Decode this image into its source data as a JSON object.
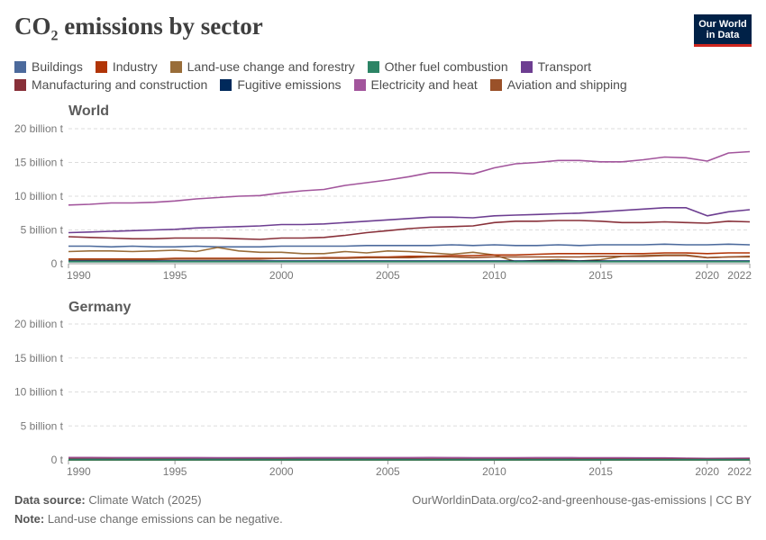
{
  "header": {
    "title_main": "CO",
    "title_sub": "2",
    "title_rest": " emissions by sector",
    "logo_line1": "Our World",
    "logo_line2": "in Data"
  },
  "legend": [
    {
      "name": "Buildings",
      "color": "#4c6a9c"
    },
    {
      "name": "Industry",
      "color": "#b13507"
    },
    {
      "name": "Land-use change and forestry",
      "color": "#996d39"
    },
    {
      "name": "Other fuel combustion",
      "color": "#2c8465"
    },
    {
      "name": "Transport",
      "color": "#6d3e91"
    },
    {
      "name": "Manufacturing and construction",
      "color": "#883039"
    },
    {
      "name": "Fugitive emissions",
      "color": "#00295b"
    },
    {
      "name": "Electricity and heat",
      "color": "#a2559c"
    },
    {
      "name": "Aviation and shipping",
      "color": "#9a5129"
    }
  ],
  "footer": {
    "source_label": "Data source:",
    "source_value": " Climate Watch (2025)",
    "url": "OurWorldinData.org/co2-and-greenhouse-gas-emissions | CC BY",
    "note_label": "Note:",
    "note_value": " Land-use change emissions can be negative."
  },
  "chart_data": [
    {
      "type": "line",
      "title": "World",
      "ylim": [
        0,
        20
      ],
      "yticks": [
        "0 t",
        "5 billion t",
        "10 billion t",
        "15 billion t",
        "20 billion t"
      ],
      "xticks": [
        "1990",
        "1995",
        "2000",
        "2005",
        "2010",
        "2015",
        "2020",
        "2022"
      ],
      "x": [
        1990,
        1991,
        1992,
        1993,
        1994,
        1995,
        1996,
        1997,
        1998,
        1999,
        2000,
        2001,
        2002,
        2003,
        2004,
        2005,
        2006,
        2007,
        2008,
        2009,
        2010,
        2011,
        2012,
        2013,
        2014,
        2015,
        2016,
        2017,
        2018,
        2019,
        2020,
        2021,
        2022
      ],
      "series": [
        {
          "name": "Electricity and heat",
          "color": "#a2559c",
          "values": [
            8.7,
            8.8,
            9.0,
            9.0,
            9.1,
            9.3,
            9.6,
            9.8,
            10.0,
            10.1,
            10.5,
            10.8,
            11.0,
            11.6,
            12.0,
            12.4,
            12.9,
            13.5,
            13.5,
            13.3,
            14.2,
            14.8,
            15.0,
            15.3,
            15.3,
            15.1,
            15.1,
            15.4,
            15.8,
            15.7,
            15.2,
            16.4,
            16.6
          ]
        },
        {
          "name": "Transport",
          "color": "#6d3e91",
          "values": [
            4.6,
            4.7,
            4.8,
            4.9,
            5.0,
            5.1,
            5.3,
            5.4,
            5.5,
            5.6,
            5.8,
            5.8,
            5.9,
            6.1,
            6.3,
            6.5,
            6.7,
            6.9,
            6.9,
            6.8,
            7.1,
            7.2,
            7.3,
            7.4,
            7.5,
            7.7,
            7.9,
            8.1,
            8.3,
            8.3,
            7.1,
            7.7,
            8.0
          ]
        },
        {
          "name": "Manufacturing and construction",
          "color": "#883039",
          "values": [
            4.0,
            3.9,
            3.8,
            3.7,
            3.7,
            3.8,
            3.8,
            3.8,
            3.7,
            3.6,
            3.8,
            3.8,
            3.9,
            4.2,
            4.6,
            4.9,
            5.2,
            5.4,
            5.5,
            5.6,
            6.1,
            6.3,
            6.3,
            6.4,
            6.4,
            6.3,
            6.1,
            6.1,
            6.2,
            6.1,
            6.0,
            6.3,
            6.2
          ]
        },
        {
          "name": "Buildings",
          "color": "#4c6a9c",
          "values": [
            2.6,
            2.6,
            2.5,
            2.6,
            2.5,
            2.5,
            2.6,
            2.5,
            2.5,
            2.5,
            2.6,
            2.6,
            2.6,
            2.6,
            2.7,
            2.7,
            2.7,
            2.7,
            2.8,
            2.7,
            2.8,
            2.7,
            2.7,
            2.8,
            2.7,
            2.8,
            2.8,
            2.8,
            2.9,
            2.8,
            2.8,
            2.9,
            2.8
          ]
        },
        {
          "name": "Land-use change and forestry",
          "color": "#996d39",
          "values": [
            1.8,
            1.9,
            1.9,
            1.8,
            1.9,
            2.0,
            1.8,
            2.4,
            1.9,
            1.7,
            1.7,
            1.5,
            1.5,
            1.8,
            1.6,
            1.9,
            1.8,
            1.6,
            1.4,
            1.7,
            1.3,
            0.3,
            0.5,
            0.6,
            0.4,
            0.6,
            1.1,
            1.2,
            1.3,
            1.3,
            0.9,
            1.0,
            1.0
          ]
        },
        {
          "name": "Industry",
          "color": "#b13507",
          "values": [
            0.7,
            0.7,
            0.7,
            0.7,
            0.7,
            0.8,
            0.8,
            0.8,
            0.8,
            0.8,
            0.8,
            0.8,
            0.9,
            0.9,
            1.0,
            1.0,
            1.1,
            1.1,
            1.2,
            1.2,
            1.3,
            1.3,
            1.4,
            1.5,
            1.5,
            1.5,
            1.5,
            1.5,
            1.6,
            1.6,
            1.5,
            1.6,
            1.6
          ]
        },
        {
          "name": "Aviation and shipping",
          "color": "#9a5129",
          "values": [
            0.6,
            0.6,
            0.6,
            0.6,
            0.6,
            0.7,
            0.7,
            0.7,
            0.7,
            0.7,
            0.8,
            0.8,
            0.8,
            0.8,
            0.9,
            0.9,
            0.9,
            1.0,
            1.0,
            0.9,
            1.0,
            1.0,
            1.0,
            1.0,
            1.0,
            1.1,
            1.1,
            1.1,
            1.2,
            1.2,
            0.9,
            1.0,
            1.1
          ]
        },
        {
          "name": "Fugitive emissions",
          "color": "#00295b",
          "values": [
            0.4,
            0.4,
            0.4,
            0.4,
            0.4,
            0.4,
            0.4,
            0.4,
            0.4,
            0.4,
            0.4,
            0.4,
            0.4,
            0.4,
            0.4,
            0.4,
            0.4,
            0.4,
            0.4,
            0.4,
            0.4,
            0.4,
            0.4,
            0.4,
            0.4,
            0.4,
            0.4,
            0.4,
            0.4,
            0.4,
            0.4,
            0.4,
            0.4
          ]
        },
        {
          "name": "Other fuel combustion",
          "color": "#2c8465",
          "values": [
            0.3,
            0.3,
            0.3,
            0.3,
            0.3,
            0.3,
            0.3,
            0.3,
            0.3,
            0.3,
            0.3,
            0.3,
            0.3,
            0.3,
            0.3,
            0.3,
            0.3,
            0.3,
            0.3,
            0.3,
            0.3,
            0.3,
            0.3,
            0.3,
            0.3,
            0.3,
            0.3,
            0.3,
            0.3,
            0.3,
            0.3,
            0.3,
            0.3
          ]
        }
      ]
    },
    {
      "type": "line",
      "title": "Germany",
      "ylim": [
        0,
        20
      ],
      "yticks": [
        "0 t",
        "5 billion t",
        "10 billion t",
        "15 billion t",
        "20 billion t"
      ],
      "xticks": [
        "1990",
        "1995",
        "2000",
        "2005",
        "2010",
        "2015",
        "2020",
        "2022"
      ],
      "x": [
        1990,
        1991,
        1992,
        1993,
        1994,
        1995,
        1996,
        1997,
        1998,
        1999,
        2000,
        2001,
        2002,
        2003,
        2004,
        2005,
        2006,
        2007,
        2008,
        2009,
        2010,
        2011,
        2012,
        2013,
        2014,
        2015,
        2016,
        2017,
        2018,
        2019,
        2020,
        2021,
        2022
      ],
      "series": [
        {
          "name": "Electricity and heat",
          "color": "#a2559c",
          "values": [
            0.36,
            0.36,
            0.35,
            0.34,
            0.34,
            0.34,
            0.35,
            0.33,
            0.33,
            0.32,
            0.33,
            0.34,
            0.34,
            0.35,
            0.35,
            0.35,
            0.35,
            0.36,
            0.35,
            0.32,
            0.33,
            0.33,
            0.34,
            0.35,
            0.33,
            0.33,
            0.33,
            0.31,
            0.3,
            0.25,
            0.22,
            0.24,
            0.25
          ]
        },
        {
          "name": "Transport",
          "color": "#6d3e91",
          "values": [
            0.16,
            0.16,
            0.17,
            0.17,
            0.17,
            0.17,
            0.17,
            0.17,
            0.17,
            0.18,
            0.17,
            0.17,
            0.17,
            0.17,
            0.16,
            0.16,
            0.16,
            0.15,
            0.15,
            0.15,
            0.15,
            0.16,
            0.15,
            0.16,
            0.16,
            0.16,
            0.16,
            0.17,
            0.16,
            0.16,
            0.15,
            0.15,
            0.15
          ]
        },
        {
          "name": "Manufacturing and construction",
          "color": "#883039",
          "values": [
            0.2,
            0.18,
            0.17,
            0.16,
            0.16,
            0.16,
            0.15,
            0.15,
            0.15,
            0.14,
            0.14,
            0.13,
            0.13,
            0.13,
            0.13,
            0.13,
            0.13,
            0.13,
            0.13,
            0.11,
            0.12,
            0.12,
            0.12,
            0.12,
            0.12,
            0.12,
            0.12,
            0.12,
            0.12,
            0.12,
            0.11,
            0.11,
            0.11
          ]
        },
        {
          "name": "Buildings",
          "color": "#4c6a9c",
          "values": [
            0.13,
            0.14,
            0.13,
            0.14,
            0.13,
            0.13,
            0.15,
            0.14,
            0.13,
            0.12,
            0.11,
            0.12,
            0.12,
            0.12,
            0.11,
            0.11,
            0.11,
            0.09,
            0.1,
            0.1,
            0.1,
            0.09,
            0.09,
            0.1,
            0.08,
            0.09,
            0.09,
            0.09,
            0.08,
            0.09,
            0.09,
            0.09,
            0.08
          ]
        },
        {
          "name": "Industry",
          "color": "#b13507",
          "values": [
            0.06,
            0.06,
            0.06,
            0.06,
            0.06,
            0.06,
            0.06,
            0.06,
            0.06,
            0.06,
            0.06,
            0.06,
            0.06,
            0.06,
            0.06,
            0.06,
            0.06,
            0.06,
            0.06,
            0.05,
            0.05,
            0.05,
            0.05,
            0.05,
            0.05,
            0.05,
            0.05,
            0.05,
            0.05,
            0.05,
            0.05,
            0.05,
            0.05
          ]
        },
        {
          "name": "Aviation and shipping",
          "color": "#9a5129",
          "values": [
            0.03,
            0.03,
            0.03,
            0.03,
            0.03,
            0.03,
            0.03,
            0.03,
            0.03,
            0.03,
            0.03,
            0.03,
            0.03,
            0.03,
            0.03,
            0.03,
            0.03,
            0.03,
            0.03,
            0.03,
            0.03,
            0.03,
            0.03,
            0.03,
            0.03,
            0.03,
            0.03,
            0.03,
            0.03,
            0.03,
            0.02,
            0.02,
            0.02
          ]
        },
        {
          "name": "Fugitive emissions",
          "color": "#00295b",
          "values": [
            0.02,
            0.02,
            0.02,
            0.02,
            0.02,
            0.02,
            0.02,
            0.02,
            0.02,
            0.02,
            0.02,
            0.02,
            0.02,
            0.02,
            0.02,
            0.02,
            0.02,
            0.02,
            0.02,
            0.02,
            0.02,
            0.02,
            0.02,
            0.02,
            0.02,
            0.02,
            0.02,
            0.02,
            0.02,
            0.02,
            0.02,
            0.02,
            0.02
          ]
        },
        {
          "name": "Land-use change and forestry",
          "color": "#996d39",
          "values": [
            -0.02,
            -0.02,
            -0.02,
            -0.02,
            -0.02,
            -0.02,
            -0.02,
            -0.02,
            -0.02,
            -0.02,
            -0.02,
            -0.02,
            -0.02,
            -0.02,
            -0.02,
            -0.02,
            -0.02,
            -0.02,
            -0.02,
            -0.02,
            -0.02,
            -0.02,
            -0.02,
            -0.02,
            -0.02,
            -0.02,
            -0.02,
            -0.02,
            -0.02,
            -0.02,
            -0.02,
            -0.02,
            -0.02
          ]
        },
        {
          "name": "Other fuel combustion",
          "color": "#2c8465",
          "values": [
            0.01,
            0.01,
            0.01,
            0.01,
            0.01,
            0.01,
            0.01,
            0.01,
            0.01,
            0.01,
            0.01,
            0.01,
            0.01,
            0.01,
            0.01,
            0.01,
            0.01,
            0.01,
            0.01,
            0.01,
            0.01,
            0.01,
            0.01,
            0.01,
            0.01,
            0.01,
            0.01,
            0.01,
            0.01,
            0.01,
            0.01,
            0.01,
            0.01
          ]
        }
      ]
    }
  ]
}
